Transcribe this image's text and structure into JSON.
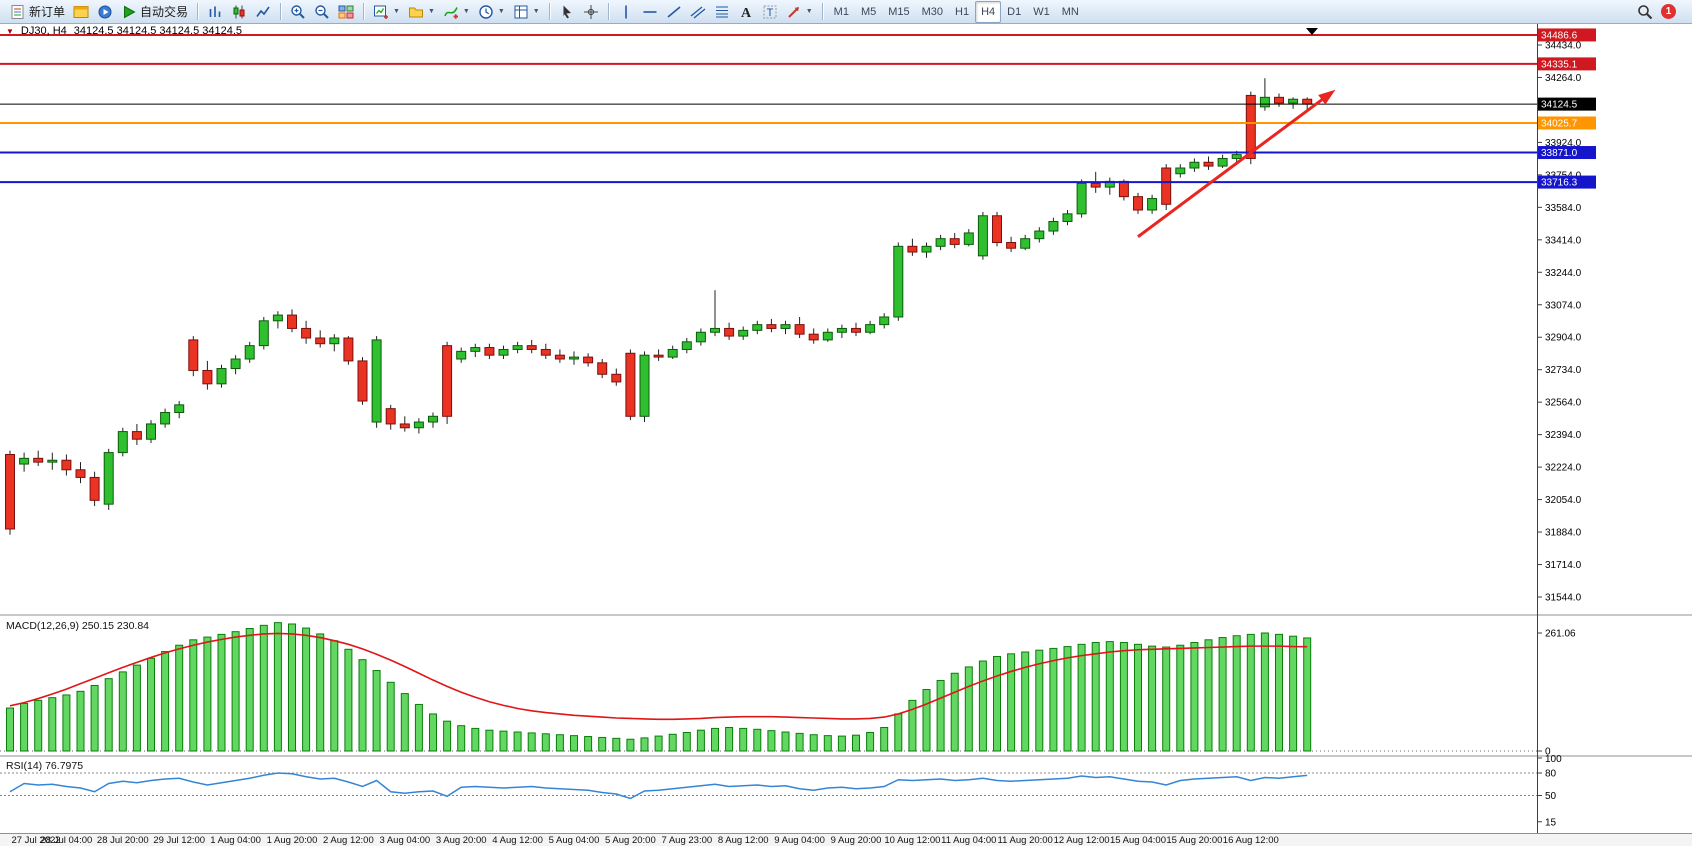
{
  "toolbar": {
    "groups": [
      {
        "name": "trade-group",
        "items": [
          {
            "name": "new-order-button",
            "icon": "new-order-icon",
            "label": "新订单"
          },
          {
            "name": "terminal-button",
            "icon": "terminal-icon"
          },
          {
            "name": "strategy-tester-button",
            "icon": "strategy-tester-icon"
          },
          {
            "name": "autotrading-button",
            "icon": "autotrading-icon",
            "label": "自动交易"
          }
        ]
      },
      {
        "name": "chart-type-group",
        "items": [
          {
            "name": "bar-chart-button",
            "icon": "bar-chart-icon"
          },
          {
            "name": "candlestick-button",
            "icon": "candlestick-icon"
          },
          {
            "name": "line-chart-button",
            "icon": "line-chart-icon"
          }
        ]
      },
      {
        "name": "zoom-group",
        "items": [
          {
            "name": "zoom-in-button",
            "icon": "zoom-in-icon"
          },
          {
            "name": "zoom-out-button",
            "icon": "zoom-out-icon"
          },
          {
            "name": "tile-windows-button",
            "icon": "tile-windows-icon"
          }
        ]
      },
      {
        "name": "chart-tools-group",
        "items": [
          {
            "name": "new-chart-button",
            "icon": "new-chart-icon",
            "dropdown": true
          },
          {
            "name": "profiles-button",
            "icon": "profiles-icon",
            "dropdown": true
          },
          {
            "name": "indicators-button",
            "icon": "indicators-icon",
            "dropdown": true
          },
          {
            "name": "periods-button",
            "icon": "periods-icon",
            "dropdown": true
          },
          {
            "name": "templates-button",
            "icon": "templates-icon",
            "dropdown": true
          }
        ]
      },
      {
        "name": "cursor-group",
        "items": [
          {
            "name": "cursor-button",
            "icon": "cursor-icon"
          },
          {
            "name": "crosshair-button",
            "icon": "crosshair-icon"
          }
        ]
      },
      {
        "name": "objects-group",
        "items": [
          {
            "name": "vertical-line-button",
            "icon": "vertical-line-icon"
          },
          {
            "name": "horizontal-line-button",
            "icon": "horizontal-line-icon"
          },
          {
            "name": "trendline-button",
            "icon": "trendline-icon"
          },
          {
            "name": "channel-button",
            "icon": "channel-icon"
          },
          {
            "name": "fibonacci-button",
            "icon": "fibonacci-icon"
          },
          {
            "name": "text-button",
            "icon": "text-icon"
          },
          {
            "name": "label-button",
            "icon": "label-icon"
          },
          {
            "name": "arrows-button",
            "icon": "arrows-icon",
            "dropdown": true
          }
        ]
      }
    ],
    "timeframes": [
      "M1",
      "M5",
      "M15",
      "M30",
      "H1",
      "H4",
      "D1",
      "W1",
      "MN"
    ],
    "active_timeframe": "H4",
    "notification_count": "1"
  },
  "chart": {
    "marker": "▼",
    "symbol": "DJ30, H4",
    "ohlc": "34124.5 34124.5 34124.5 34124.5",
    "levels": [
      {
        "name": "resistance-line-1",
        "text": "34486.6",
        "value": 34486.6,
        "color": "#d01820",
        "width": 2
      },
      {
        "name": "resistance-line-2",
        "text": "34335.1",
        "value": 34335.1,
        "color": "#d01820",
        "width": 2
      },
      {
        "name": "current-price-line",
        "text": "34124.5",
        "value": 34124.5,
        "color": "#000000",
        "width": 1
      },
      {
        "name": "pivot-line",
        "text": "34025.7",
        "value": 34025.7,
        "color": "#ff9500",
        "width": 2
      },
      {
        "name": "support-line-1",
        "text": "33871.0",
        "value": 33871.0,
        "color": "#1515cc",
        "width": 2
      },
      {
        "name": "support-line-2",
        "text": "33716.3",
        "value": 33716.3,
        "color": "#1515cc",
        "width": 2
      }
    ],
    "gridlines": [
      {
        "text": "34434.0",
        "value": 34434
      },
      {
        "text": "34264.0",
        "value": 34264
      },
      {
        "text": "33924.0",
        "value": 33924
      },
      {
        "text": "33754.0",
        "value": 33754
      },
      {
        "text": "33584.0",
        "value": 33584
      },
      {
        "text": "33414.0",
        "value": 33414
      },
      {
        "text": "33244.0",
        "value": 33244
      },
      {
        "text": "33074.0",
        "value": 33074
      },
      {
        "text": "32904.0",
        "value": 32904
      },
      {
        "text": "32734.0",
        "value": 32734
      },
      {
        "text": "32564.0",
        "value": 32564
      },
      {
        "text": "32394.0",
        "value": 32394
      },
      {
        "text": "32224.0",
        "value": 32224
      },
      {
        "text": "32054.0",
        "value": 32054
      },
      {
        "text": "31884.0",
        "value": 31884
      },
      {
        "text": "31714.0",
        "value": 31714
      },
      {
        "text": "31544.0",
        "value": 31544
      }
    ]
  },
  "indicators": {
    "macd_label": "MACD(12,26,9) 250.15 230.84",
    "rsi_label": "RSI(14) 76.7975",
    "macd_axis": [
      {
        "text": "261.06",
        "value": 261.06
      },
      {
        "text": "0",
        "value": 0
      }
    ],
    "rsi_axis": [
      {
        "text": "100",
        "value": 100
      },
      {
        "text": "80",
        "value": 80
      },
      {
        "text": "50",
        "value": 50
      },
      {
        "text": "15",
        "value": 15
      }
    ],
    "rsi_levels": [
      80,
      50
    ]
  },
  "chart_data": [
    {
      "type": "candlestick",
      "title": "DJ30 H4",
      "timeframe": "H4",
      "ylim": [
        31500,
        34550
      ],
      "label_every": 4,
      "x_labels": [
        "27 Jul 2022",
        "28 Jul 04:00",
        "28 Jul 20:00",
        "29 Jul 12:00",
        "1 Aug 04:00",
        "1 Aug 20:00",
        "2 Aug 12:00",
        "3 Aug 04:00",
        "3 Aug 20:00",
        "4 Aug 12:00",
        "5 Aug 04:00",
        "5 Aug 20:00",
        "7 Aug 23:00",
        "8 Aug 12:00",
        "9 Aug 04:00",
        "9 Aug 20:00",
        "10 Aug 12:00",
        "11 Aug 04:00",
        "11 Aug 20:00",
        "12 Aug 12:00",
        "15 Aug 04:00",
        "15 Aug 20:00",
        "16 Aug 12:00"
      ],
      "candles": [
        [
          32290,
          32310,
          31870,
          31900
        ],
        [
          32240,
          32300,
          32200,
          32270
        ],
        [
          32270,
          32310,
          32230,
          32250
        ],
        [
          32250,
          32300,
          32210,
          32260
        ],
        [
          32260,
          32290,
          32180,
          32210
        ],
        [
          32210,
          32250,
          32140,
          32170
        ],
        [
          32170,
          32200,
          32020,
          32050
        ],
        [
          32030,
          32320,
          32000,
          32300
        ],
        [
          32300,
          32430,
          32280,
          32410
        ],
        [
          32410,
          32450,
          32340,
          32370
        ],
        [
          32370,
          32470,
          32350,
          32450
        ],
        [
          32450,
          32530,
          32430,
          32510
        ],
        [
          32510,
          32570,
          32480,
          32550
        ],
        [
          32890,
          32910,
          32700,
          32730
        ],
        [
          32730,
          32780,
          32630,
          32660
        ],
        [
          32660,
          32760,
          32640,
          32740
        ],
        [
          32740,
          32810,
          32710,
          32790
        ],
        [
          32790,
          32880,
          32770,
          32860
        ],
        [
          32860,
          33010,
          32840,
          32990
        ],
        [
          32990,
          33040,
          32950,
          33020
        ],
        [
          33020,
          33050,
          32930,
          32950
        ],
        [
          32950,
          32990,
          32870,
          32900
        ],
        [
          32900,
          32940,
          32850,
          32870
        ],
        [
          32870,
          32920,
          32830,
          32900
        ],
        [
          32900,
          32910,
          32760,
          32780
        ],
        [
          32780,
          32800,
          32550,
          32570
        ],
        [
          32460,
          32910,
          32430,
          32890
        ],
        [
          32530,
          32550,
          32420,
          32450
        ],
        [
          32450,
          32490,
          32410,
          32430
        ],
        [
          32430,
          32480,
          32400,
          32460
        ],
        [
          32460,
          32510,
          32430,
          32490
        ],
        [
          32860,
          32880,
          32450,
          32490
        ],
        [
          32790,
          32850,
          32770,
          32830
        ],
        [
          32830,
          32870,
          32800,
          32850
        ],
        [
          32850,
          32870,
          32790,
          32810
        ],
        [
          32810,
          32860,
          32790,
          32840
        ],
        [
          32840,
          32880,
          32820,
          32860
        ],
        [
          32860,
          32890,
          32820,
          32840
        ],
        [
          32840,
          32870,
          32790,
          32810
        ],
        [
          32810,
          32840,
          32770,
          32790
        ],
        [
          32790,
          32830,
          32760,
          32800
        ],
        [
          32800,
          32820,
          32750,
          32770
        ],
        [
          32770,
          32790,
          32690,
          32710
        ],
        [
          32710,
          32740,
          32650,
          32670
        ],
        [
          32820,
          32840,
          32470,
          32490
        ],
        [
          32490,
          32830,
          32460,
          32810
        ],
        [
          32810,
          32840,
          32780,
          32800
        ],
        [
          32800,
          32860,
          32790,
          32840
        ],
        [
          32840,
          32900,
          32820,
          32880
        ],
        [
          32880,
          32950,
          32860,
          32930
        ],
        [
          32930,
          33150,
          32910,
          32950
        ],
        [
          32950,
          32980,
          32890,
          32910
        ],
        [
          32910,
          32960,
          32890,
          32940
        ],
        [
          32940,
          32990,
          32920,
          32970
        ],
        [
          32970,
          33000,
          32930,
          32950
        ],
        [
          32950,
          32990,
          32920,
          32970
        ],
        [
          32970,
          33010,
          32900,
          32920
        ],
        [
          32920,
          32950,
          32870,
          32890
        ],
        [
          32890,
          32950,
          32880,
          32930
        ],
        [
          32930,
          32970,
          32900,
          32950
        ],
        [
          32950,
          32980,
          32910,
          32930
        ],
        [
          32930,
          32990,
          32920,
          32970
        ],
        [
          32970,
          33030,
          32950,
          33010
        ],
        [
          33010,
          33400,
          32990,
          33380
        ],
        [
          33380,
          33420,
          33330,
          33350
        ],
        [
          33350,
          33400,
          33320,
          33380
        ],
        [
          33380,
          33440,
          33360,
          33420
        ],
        [
          33420,
          33450,
          33370,
          33390
        ],
        [
          33390,
          33470,
          33380,
          33450
        ],
        [
          33330,
          33560,
          33310,
          33540
        ],
        [
          33540,
          33560,
          33380,
          33400
        ],
        [
          33400,
          33430,
          33350,
          33370
        ],
        [
          33370,
          33440,
          33360,
          33420
        ],
        [
          33420,
          33480,
          33400,
          33460
        ],
        [
          33460,
          33530,
          33440,
          33510
        ],
        [
          33510,
          33570,
          33490,
          33550
        ],
        [
          33550,
          33730,
          33530,
          33710
        ],
        [
          33710,
          33770,
          33660,
          33690
        ],
        [
          33690,
          33740,
          33650,
          33720
        ],
        [
          33720,
          33730,
          33620,
          33640
        ],
        [
          33640,
          33660,
          33550,
          33570
        ],
        [
          33570,
          33650,
          33550,
          33630
        ],
        [
          33790,
          33810,
          33570,
          33600
        ],
        [
          33760,
          33810,
          33740,
          33790
        ],
        [
          33790,
          33840,
          33770,
          33820
        ],
        [
          33820,
          33850,
          33780,
          33800
        ],
        [
          33800,
          33860,
          33790,
          33840
        ],
        [
          33840,
          33880,
          33810,
          33860
        ],
        [
          34170,
          34190,
          33810,
          33840
        ],
        [
          34110,
          34260,
          34090,
          34160
        ],
        [
          34160,
          34180,
          34110,
          34130
        ],
        [
          34130,
          34160,
          34100,
          34150
        ],
        [
          34150,
          34160,
          34090,
          34124.5
        ]
      ],
      "annotations": [
        {
          "type": "arrow",
          "name": "trend-arrow",
          "color": "#e8251f",
          "from_index": 80,
          "from_price": 33430,
          "to_index": 94,
          "to_price": 34200
        }
      ]
    },
    {
      "type": "bar",
      "name": "MACD",
      "params": "12,26,9",
      "main_value": 250.15,
      "signal_value": 230.84,
      "ylim": [
        0,
        290
      ],
      "values": [
        95,
        105,
        112,
        118,
        124,
        132,
        145,
        160,
        175,
        190,
        205,
        220,
        234,
        246,
        252,
        258,
        264,
        271,
        278,
        284,
        281,
        272,
        259,
        244,
        225,
        202,
        178,
        152,
        127,
        103,
        82,
        66,
        56,
        50,
        46,
        44,
        42,
        40,
        38,
        36,
        34,
        32,
        30,
        28,
        26,
        29,
        33,
        37,
        41,
        46,
        50,
        52,
        50,
        48,
        45,
        42,
        39,
        36,
        34,
        33,
        35,
        41,
        52,
        82,
        112,
        136,
        156,
        172,
        186,
        199,
        209,
        215,
        219,
        223,
        227,
        231,
        236,
        240,
        242,
        240,
        236,
        232,
        230,
        234,
        240,
        246,
        251,
        255,
        258,
        261.06,
        258,
        254,
        250.15
      ],
      "signal": [
        100,
        107,
        116,
        126,
        137,
        149,
        161,
        173,
        185,
        196,
        207,
        217,
        226,
        234,
        241,
        247,
        252,
        256,
        259,
        260,
        259,
        256,
        251,
        244,
        236,
        226,
        214,
        201,
        187,
        172,
        157,
        143,
        130,
        119,
        109,
        101,
        94,
        89,
        85,
        82,
        79,
        77,
        75,
        73,
        72,
        71,
        70,
        70,
        71,
        72,
        74,
        75,
        76,
        76,
        76,
        75,
        74,
        73,
        72,
        71,
        71,
        72,
        75,
        82,
        92,
        104,
        117,
        130,
        143,
        155,
        166,
        176,
        185,
        193,
        200,
        206,
        211,
        215,
        219,
        222,
        224,
        225,
        226,
        227,
        228,
        229,
        230,
        231,
        232,
        232,
        232,
        231,
        230.84
      ]
    },
    {
      "type": "line",
      "name": "RSI",
      "params": "14",
      "value": 76.7975,
      "ylim": [
        0,
        100
      ],
      "levels": [
        80,
        50
      ],
      "values": [
        55,
        66,
        64,
        65,
        62,
        60,
        55,
        66,
        69,
        67,
        70,
        72,
        73,
        68,
        64,
        67,
        70,
        73,
        77,
        80,
        79,
        75,
        72,
        73,
        68,
        62,
        70,
        55,
        53,
        55,
        56,
        49,
        61,
        62,
        61,
        60,
        61,
        62,
        60,
        59,
        58,
        57,
        54,
        52,
        46,
        56,
        57,
        59,
        61,
        63,
        65,
        62,
        63,
        64,
        62,
        63,
        59,
        57,
        60,
        61,
        59,
        60,
        62,
        71,
        70,
        71,
        72,
        70,
        71,
        73,
        70,
        69,
        70,
        71,
        72,
        73,
        76,
        74,
        75,
        72,
        69,
        68,
        64,
        70,
        72,
        73,
        74,
        75,
        70,
        74,
        73,
        75,
        76.8
      ]
    }
  ]
}
